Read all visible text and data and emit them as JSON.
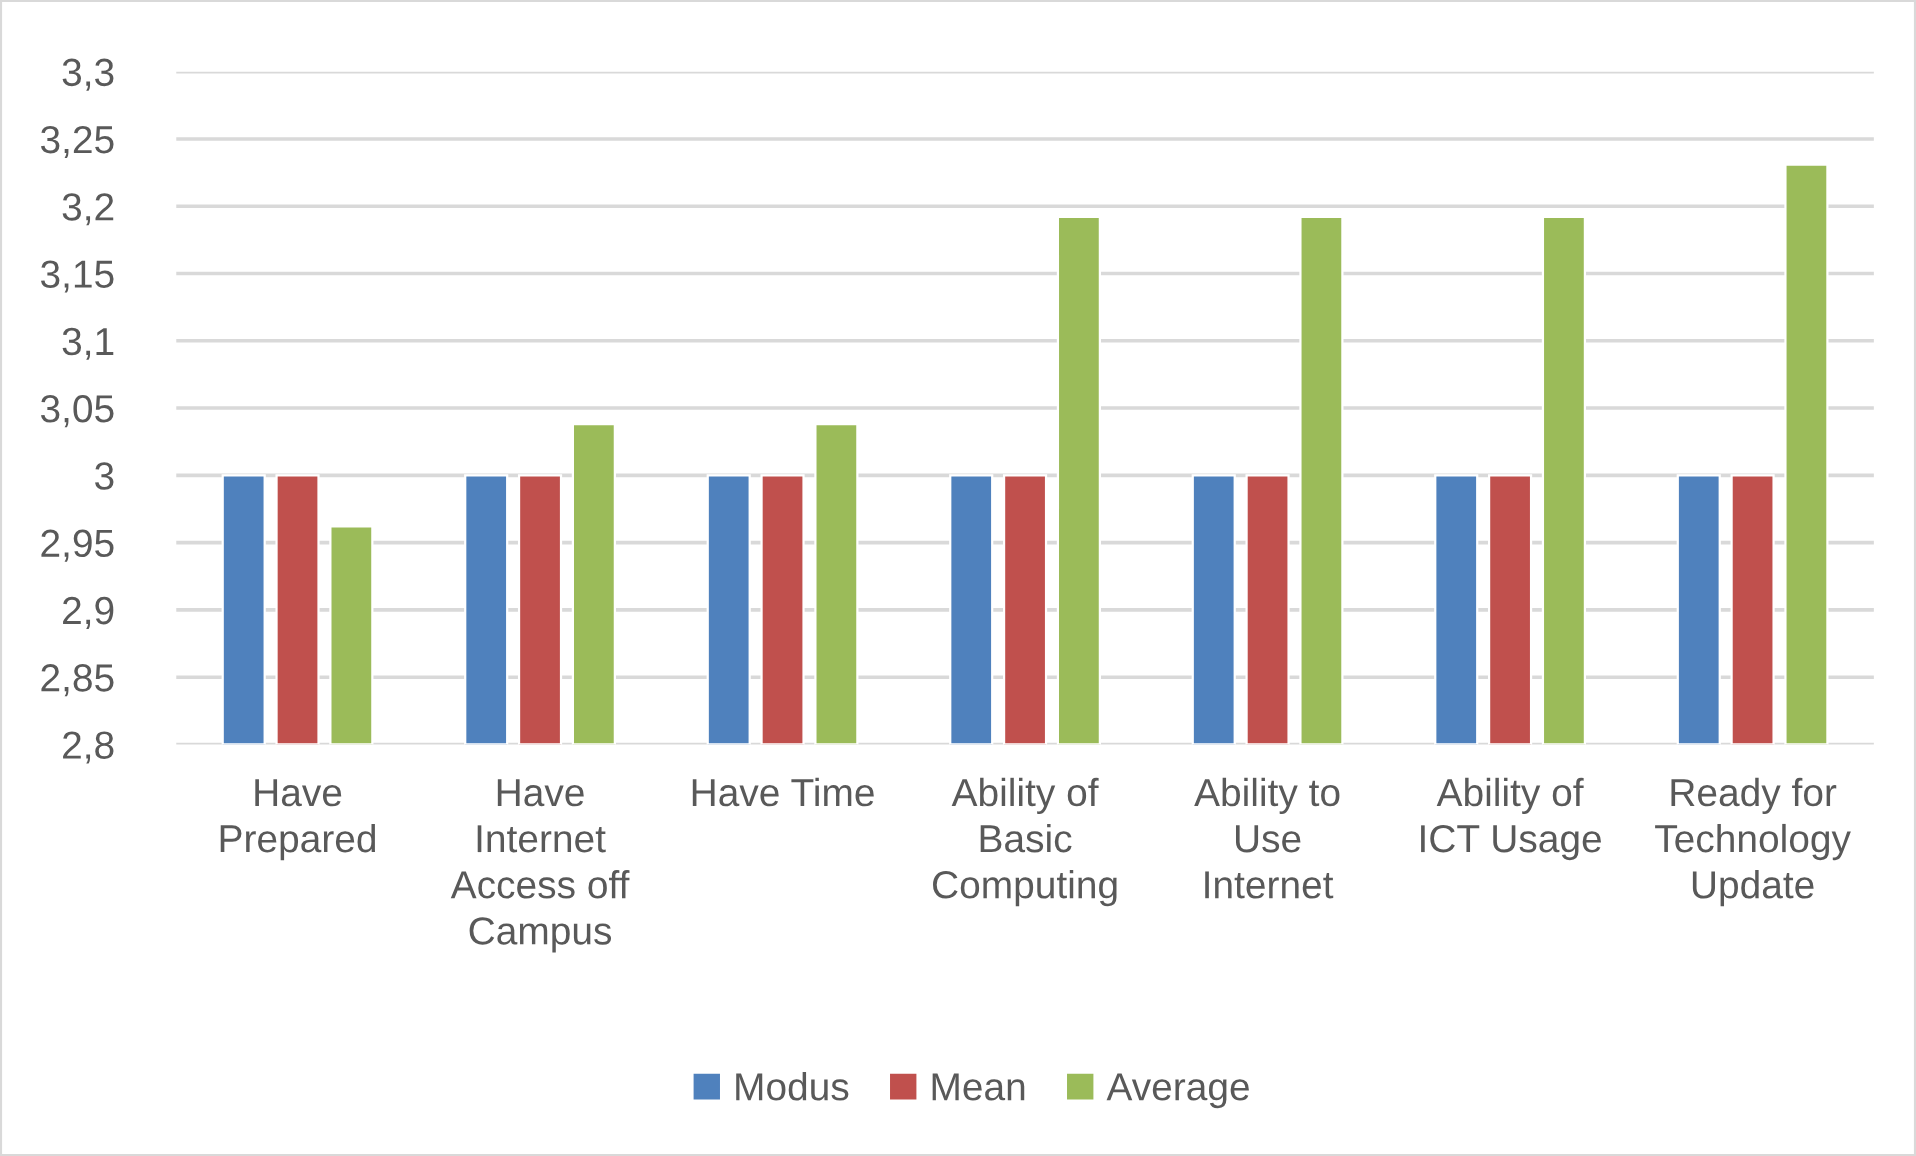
{
  "chart_data": {
    "type": "bar",
    "categories": [
      "Have\nPrepared",
      "Have\nInternet\nAccess off\nCampus",
      "Have Time",
      "Ability of\nBasic\nComputing",
      "Ability to\nUse\nInternet",
      "Ability of\nICT Usage",
      "Ready for\nTechnology\nUpdate"
    ],
    "series": [
      {
        "name": "Modus",
        "color": "#4f81bd",
        "values": [
          3,
          3,
          3,
          3,
          3,
          3,
          3
        ]
      },
      {
        "name": "Mean",
        "color": "#c0504d",
        "values": [
          3,
          3,
          3,
          3,
          3,
          3,
          3
        ]
      },
      {
        "name": "Average",
        "color": "#9bbb59",
        "values": [
          2.962,
          3.038,
          3.038,
          3.192,
          3.192,
          3.192,
          3.231
        ]
      }
    ],
    "ylim": [
      2.8,
      3.3
    ],
    "yticks": [
      {
        "value": 2.8,
        "label": "2,8"
      },
      {
        "value": 2.85,
        "label": "2,85"
      },
      {
        "value": 2.9,
        "label": "2,9"
      },
      {
        "value": 2.95,
        "label": "2,95"
      },
      3,
      {
        "value": 3.05,
        "label": "3,05"
      },
      {
        "value": 3.1,
        "label": "3,1"
      },
      {
        "value": 3.15,
        "label": "3,15"
      },
      {
        "value": 3.2,
        "label": "3,2"
      },
      {
        "value": 3.25,
        "label": "3,25"
      },
      {
        "value": 3.3,
        "label": "3,3"
      }
    ],
    "grid": "y",
    "legend": "bottom"
  }
}
